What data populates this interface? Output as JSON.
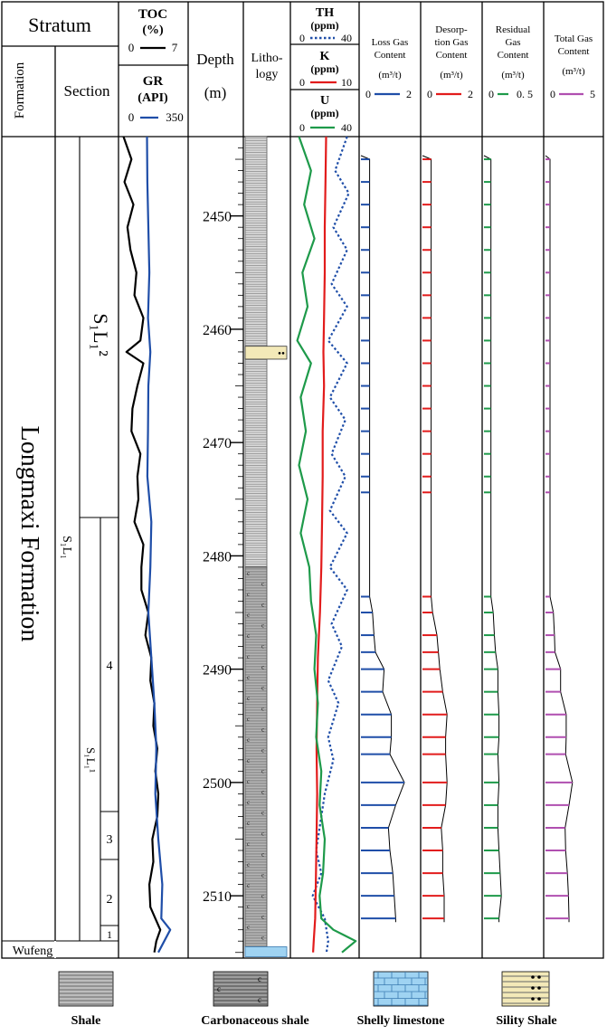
{
  "header": {
    "stratum": "Stratum",
    "formation": "Formation",
    "section": "Section",
    "toc_title": "TOC",
    "toc_unit": "(%)",
    "toc_min": "0",
    "toc_max": "7",
    "gr_title": "GR",
    "gr_unit": "(API)",
    "gr_min": "0",
    "gr_max": "350",
    "depth_title": "Depth",
    "depth_unit": "(m)",
    "litho_line1": "Litho-",
    "litho_line2": "logy",
    "th_title": "TH",
    "th_unit": "(ppm)",
    "th_min": "0",
    "th_max": "40",
    "k_title": "K",
    "k_unit": "(ppm)",
    "k_min": "0",
    "k_max": "10",
    "u_title": "U",
    "u_unit": "(ppm)",
    "u_min": "0",
    "u_max": "40",
    "loss_l1": "Loss Gas",
    "loss_l2": "Content",
    "loss_unit": "(m³/t)",
    "loss_min": "0",
    "loss_max": "2",
    "des_l1": "Desorp-",
    "des_l2": "tion Gas",
    "des_l3": "Content",
    "des_unit": "(m³/t)",
    "des_min": "0",
    "des_max": "2",
    "res_l1": "Residual",
    "res_l2": "Gas",
    "res_l3": "Content",
    "res_unit": "(m³/t)",
    "res_min": "0",
    "res_max": "0. 5",
    "tot_l1": "Total Gas",
    "tot_l2": "Content",
    "tot_unit": "(m³/t)",
    "tot_min": "0",
    "tot_max": "5"
  },
  "stratigraphy": {
    "formation_name": "Longmaxi Formation",
    "wufeng": "Wufeng",
    "s1l1": "S₁L₁",
    "s1l1_2": "S₁L₁²",
    "s1l1_1": "S₁L₁¹",
    "sublayers": [
      "4",
      "3",
      "2",
      "1"
    ]
  },
  "legend": {
    "shale": "Shale",
    "carb_shale": "Carbonaceous shale",
    "shelly_limestone": "Shelly limestone",
    "silty_shale": "Sility Shale"
  },
  "colors": {
    "toc": "#000000",
    "gr": "#1f4ea8",
    "th": "#1f4ea8",
    "k": "#e21c1c",
    "u": "#1e9a4a",
    "loss": "#1f4ea8",
    "desorption": "#e21c1c",
    "residual": "#1e9a4a",
    "total": "#b04fb0"
  },
  "chart_data": {
    "type": "line",
    "y_axis": "Depth (m)",
    "depth_range": [
      2443,
      2515.5
    ],
    "depth_ticks": [
      2450,
      2460,
      2470,
      2480,
      2490,
      2500,
      2510
    ],
    "lithology": [
      {
        "type": "shale",
        "top": 2443,
        "bottom": 2481
      },
      {
        "type": "silty shale",
        "top": 2461.5,
        "bottom": 2462.4
      },
      {
        "type": "carbonaceous shale",
        "top": 2481,
        "bottom": 2514.5
      },
      {
        "type": "shelly limestone",
        "top": 2514.5,
        "bottom": 2515.3
      }
    ],
    "series": [
      {
        "name": "TOC",
        "unit": "%",
        "range": [
          0,
          7
        ],
        "depth": [
          2443,
          2445,
          2447,
          2449,
          2451,
          2453,
          2455,
          2457,
          2459,
          2461,
          2462,
          2463,
          2465,
          2467,
          2469,
          2471,
          2473,
          2475,
          2477,
          2479,
          2481,
          2483,
          2485,
          2487,
          2489,
          2491,
          2493,
          2495,
          2497,
          2499,
          2501,
          2503,
          2505,
          2507,
          2509,
          2511,
          2512,
          2513,
          2514,
          2515
        ],
        "values": [
          0.5,
          1.3,
          0.6,
          1.5,
          0.9,
          1.2,
          1.8,
          1.6,
          2.5,
          2.2,
          0.8,
          2.5,
          1.9,
          1.4,
          1.3,
          2.2,
          1.9,
          2.0,
          1.6,
          2.5,
          2.3,
          2.3,
          3.0,
          2.7,
          3.3,
          3.2,
          3.6,
          3.5,
          3.9,
          3.7,
          4.0,
          3.9,
          3.4,
          3.5,
          3.1,
          3.2,
          3.7,
          4.2,
          3.8,
          3.6
        ]
      },
      {
        "name": "GR",
        "unit": "API",
        "range": [
          0,
          350
        ],
        "depth": [
          2443,
          2447,
          2451,
          2455,
          2459,
          2462,
          2465,
          2469,
          2473,
          2477,
          2481,
          2485,
          2489,
          2493,
          2497,
          2501,
          2505,
          2509,
          2512,
          2513,
          2514,
          2515
        ],
        "values": [
          143,
          145,
          150,
          155,
          148,
          160,
          150,
          148,
          145,
          165,
          160,
          150,
          165,
          180,
          190,
          185,
          200,
          220,
          215,
          260,
          230,
          200
        ]
      },
      {
        "name": "TH",
        "unit": "ppm",
        "range": [
          0,
          40
        ],
        "depth": [
          2443,
          2446,
          2448,
          2451,
          2453,
          2456,
          2458,
          2461,
          2463,
          2466,
          2468,
          2471,
          2473,
          2476,
          2478,
          2481,
          2483,
          2486,
          2488,
          2491,
          2493,
          2496,
          2498,
          2501,
          2503,
          2506,
          2508,
          2510,
          2512,
          2514,
          2515
        ],
        "values": [
          33,
          26,
          34,
          25,
          33,
          24,
          33,
          22,
          33,
          23,
          32,
          24,
          32,
          23,
          33,
          23,
          33,
          24,
          30,
          22,
          28,
          22,
          25,
          20,
          18,
          15,
          18,
          13,
          20,
          22,
          21
        ]
      },
      {
        "name": "K",
        "unit": "ppm",
        "range": [
          0,
          10
        ],
        "depth": [
          2443,
          2447,
          2451,
          2455,
          2459,
          2462,
          2465,
          2469,
          2473,
          2477,
          2481,
          2485,
          2489,
          2493,
          2497,
          2501,
          2505,
          2509,
          2512,
          2514,
          2515
        ],
        "values": [
          5.2,
          5.1,
          5.0,
          5.0,
          4.9,
          4.8,
          4.9,
          4.7,
          4.7,
          4.6,
          4.5,
          4.3,
          4.0,
          3.9,
          3.8,
          3.9,
          3.8,
          3.7,
          3.6,
          3.4,
          3.3
        ]
      },
      {
        "name": "U",
        "unit": "ppm",
        "range": [
          0,
          40
        ],
        "depth": [
          2443,
          2446,
          2449,
          2452,
          2455,
          2458,
          2461,
          2463,
          2466,
          2469,
          2472,
          2475,
          2478,
          2481,
          2484,
          2487,
          2490,
          2493,
          2496,
          2499,
          2502,
          2505,
          2508,
          2510,
          2512,
          2513,
          2514,
          2515
        ],
        "values": [
          5,
          12,
          8,
          14,
          7,
          10,
          4,
          12,
          6,
          9,
          5,
          10,
          6,
          11,
          12,
          15,
          14,
          16,
          15,
          18,
          17,
          20,
          19,
          17,
          18,
          25,
          38,
          30
        ]
      },
      {
        "name": "Loss Gas Content",
        "unit": "m3/t",
        "range": [
          0,
          2
        ],
        "depth": [
          2445,
          2447,
          2449,
          2451,
          2453,
          2455,
          2457,
          2459,
          2461,
          2463,
          2465,
          2467,
          2469,
          2471,
          2473,
          2474.4,
          2483.6,
          2485,
          2487,
          2488.5,
          2490,
          2492,
          2494,
          2496,
          2497.5,
          2500,
          2502,
          2504,
          2506,
          2508,
          2510,
          2512
        ],
        "values": [
          0.3,
          0.3,
          0.3,
          0.3,
          0.3,
          0.3,
          0.3,
          0.3,
          0.3,
          0.3,
          0.3,
          0.3,
          0.3,
          0.3,
          0.3,
          0.3,
          0.3,
          0.4,
          0.45,
          0.5,
          0.8,
          0.75,
          1.05,
          1.05,
          1.0,
          1.5,
          1.2,
          0.95,
          1.0,
          1.1,
          1.15,
          1.2
        ]
      },
      {
        "name": "Desorption Gas Content",
        "unit": "m3/t",
        "range": [
          0,
          2
        ],
        "depth": [
          2445,
          2447,
          2449,
          2451,
          2453,
          2455,
          2457,
          2459,
          2461,
          2463,
          2465,
          2467,
          2469,
          2471,
          2473,
          2474.4,
          2483.6,
          2485,
          2487,
          2488.5,
          2490,
          2492,
          2494,
          2496,
          2497.5,
          2500,
          2502,
          2504,
          2506,
          2508,
          2510,
          2512
        ],
        "values": [
          0.3,
          0.3,
          0.3,
          0.3,
          0.3,
          0.3,
          0.3,
          0.3,
          0.3,
          0.3,
          0.3,
          0.3,
          0.3,
          0.3,
          0.3,
          0.3,
          0.3,
          0.35,
          0.5,
          0.55,
          0.6,
          0.7,
          0.85,
          0.8,
          0.8,
          0.85,
          0.8,
          0.65,
          0.7,
          0.7,
          0.75,
          0.75
        ]
      },
      {
        "name": "Residual Gas Content",
        "unit": "m3/t",
        "range": [
          0,
          0.5
        ],
        "depth": [
          2445,
          2447,
          2449,
          2451,
          2453,
          2455,
          2457,
          2459,
          2461,
          2463,
          2465,
          2467,
          2469,
          2471,
          2473,
          2474.4,
          2483.6,
          2485,
          2487,
          2488.5,
          2490,
          2492,
          2494,
          2496,
          2497.5,
          2500,
          2502,
          2504,
          2506,
          2508,
          2510,
          2512
        ],
        "values": [
          0.06,
          0.06,
          0.06,
          0.06,
          0.06,
          0.06,
          0.06,
          0.06,
          0.06,
          0.06,
          0.06,
          0.06,
          0.06,
          0.06,
          0.06,
          0.06,
          0.06,
          0.08,
          0.09,
          0.1,
          0.12,
          0.12,
          0.13,
          0.13,
          0.12,
          0.13,
          0.12,
          0.12,
          0.13,
          0.14,
          0.15,
          0.13
        ]
      },
      {
        "name": "Total Gas Content",
        "unit": "m3/t",
        "range": [
          0,
          5
        ],
        "depth": [
          2445,
          2447,
          2449,
          2451,
          2453,
          2455,
          2457,
          2459,
          2461,
          2463,
          2465,
          2467,
          2469,
          2471,
          2473,
          2474.4,
          2483.6,
          2485,
          2487,
          2488.5,
          2490,
          2492,
          2494,
          2496,
          2497.5,
          2500,
          2502,
          2504,
          2506,
          2508,
          2510,
          2512
        ],
        "values": [
          0.4,
          0.4,
          0.4,
          0.4,
          0.4,
          0.4,
          0.4,
          0.4,
          0.4,
          0.4,
          0.4,
          0.4,
          0.4,
          0.4,
          0.4,
          0.4,
          0.4,
          0.7,
          0.8,
          0.85,
          1.35,
          1.35,
          1.85,
          1.85,
          1.8,
          2.4,
          2.1,
          1.75,
          1.8,
          1.95,
          2.05,
          2.1
        ]
      }
    ]
  }
}
